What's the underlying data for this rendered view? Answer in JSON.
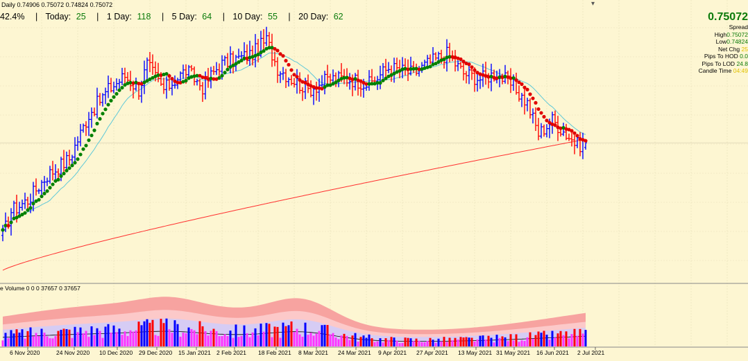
{
  "header": {
    "info_line": "Daily  0.74906 0.75072 0.74824 0.75072",
    "stats": [
      {
        "label": "42.4%",
        "value": ""
      },
      {
        "label": "Today:",
        "value": "25"
      },
      {
        "label": "1 Day:",
        "value": "118"
      },
      {
        "label": "5 Day:",
        "value": "64"
      },
      {
        "label": "10 Day:",
        "value": "55"
      },
      {
        "label": "20 Day:",
        "value": "62"
      }
    ]
  },
  "side_panel": {
    "price": "0.75072",
    "rows": [
      {
        "label": "Spread",
        "value": "",
        "color": "yellow"
      },
      {
        "label": "High",
        "value": "0.75072",
        "color": "green"
      },
      {
        "label": "Low",
        "value": "0.74824",
        "color": "green"
      },
      {
        "label": "Net Chg",
        "value": "25",
        "color": "yellow"
      },
      {
        "label": "Pips To HOD",
        "value": "0.0",
        "color": "green"
      },
      {
        "label": "Pips To LOD",
        "value": "24.8",
        "color": "green"
      },
      {
        "label": "Candle Time",
        "value": "04:49",
        "color": "yellow"
      }
    ]
  },
  "volume_title": "e Volume 0 0 0 37657 0 37657",
  "colors": {
    "background": "#fdf6d2",
    "bull_bar": "#0000ff",
    "bear_bar": "#ff0000",
    "ma_up": "#008000",
    "ma_down": "#e00000",
    "ma_fast": "#5ec8d8",
    "ma_slow": "#ff3030",
    "band_outer": "#f7a3a0",
    "band_mid": "#fcc9c9",
    "band_inner": "#d6ccf4",
    "vol_line": "#000000",
    "vol_magenta": "#ff33ff"
  },
  "icons": {
    "scroll": "scroll-down-icon"
  },
  "chart_data": {
    "type": "bar",
    "symbol_timeframe": "Daily",
    "x_tick_labels": [
      "6 Nov 2020",
      "24 Nov 2020",
      "10 Dec 2020",
      "29 Dec 2020",
      "15 Jan 2021",
      "2 Feb 2021",
      "18 Feb 2021",
      "8 Mar 2021",
      "24 Mar 2021",
      "9 Apr 2021",
      "27 Apr 2021",
      "13 May 2021",
      "31 May 2021",
      "16 Jun 2021",
      "2 Jul 2021"
    ],
    "ylim": [
      0.7,
      0.8
    ],
    "anchors": [
      {
        "i": 0,
        "c": 0.717
      },
      {
        "i": 3,
        "c": 0.726
      },
      {
        "i": 9,
        "c": 0.73
      },
      {
        "i": 16,
        "c": 0.739
      },
      {
        "i": 24,
        "c": 0.745
      },
      {
        "i": 31,
        "c": 0.761
      },
      {
        "i": 38,
        "c": 0.77
      },
      {
        "i": 44,
        "c": 0.775
      },
      {
        "i": 49,
        "c": 0.77
      },
      {
        "i": 52,
        "c": 0.779
      },
      {
        "i": 58,
        "c": 0.77
      },
      {
        "i": 66,
        "c": 0.777
      },
      {
        "i": 72,
        "c": 0.771
      },
      {
        "i": 78,
        "c": 0.779
      },
      {
        "i": 84,
        "c": 0.781
      },
      {
        "i": 90,
        "c": 0.783
      },
      {
        "i": 95,
        "c": 0.788
      },
      {
        "i": 99,
        "c": 0.778
      },
      {
        "i": 104,
        "c": 0.774
      },
      {
        "i": 110,
        "c": 0.77
      },
      {
        "i": 118,
        "c": 0.774
      },
      {
        "i": 125,
        "c": 0.774
      },
      {
        "i": 132,
        "c": 0.772
      },
      {
        "i": 139,
        "c": 0.778
      },
      {
        "i": 148,
        "c": 0.776
      },
      {
        "i": 154,
        "c": 0.78
      },
      {
        "i": 160,
        "c": 0.783
      },
      {
        "i": 166,
        "c": 0.776
      },
      {
        "i": 172,
        "c": 0.774
      },
      {
        "i": 178,
        "c": 0.776
      },
      {
        "i": 184,
        "c": 0.771
      },
      {
        "i": 189,
        "c": 0.765
      },
      {
        "i": 193,
        "c": 0.754
      },
      {
        "i": 198,
        "c": 0.759
      },
      {
        "i": 203,
        "c": 0.754
      },
      {
        "i": 207,
        "c": 0.75
      },
      {
        "i": 210,
        "c": 0.7507
      }
    ],
    "last_bar": {
      "open": 0.74906,
      "high": 0.75072,
      "low": 0.74824,
      "close": 0.75072
    },
    "volume_last": 37657
  }
}
